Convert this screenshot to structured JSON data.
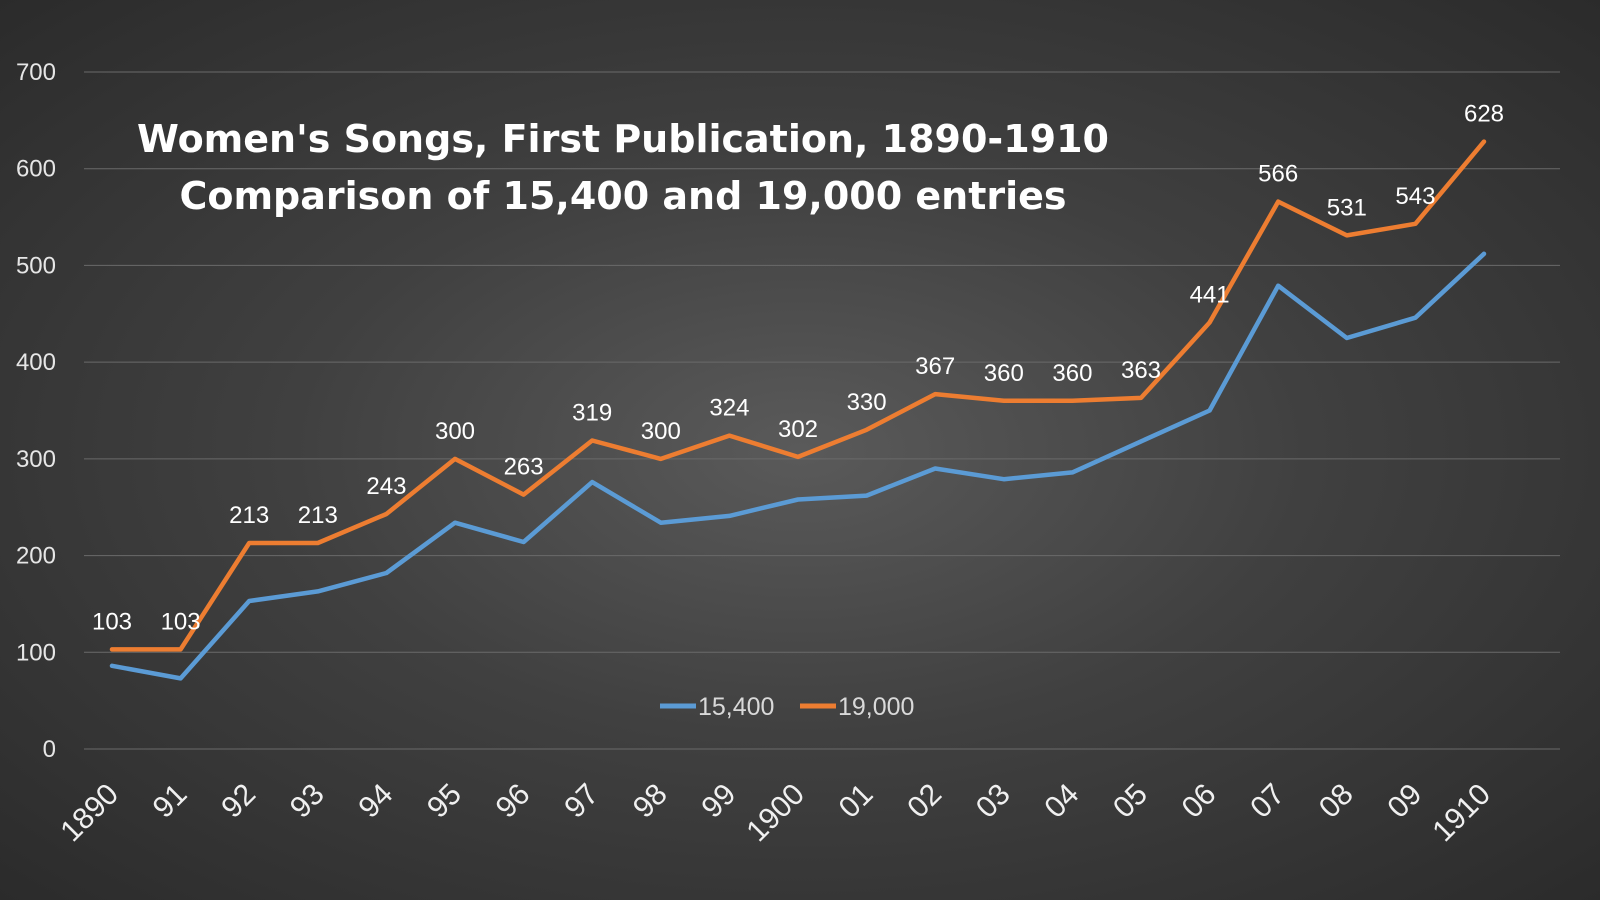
{
  "chart_data": {
    "type": "line",
    "title_lines": [
      "Women's Songs, First Publication, 1890-1910",
      "Comparison of 15,400 and 19,000 entries"
    ],
    "xlabel": "",
    "ylabel": "",
    "categories": [
      "1890",
      "91",
      "92",
      "93",
      "94",
      "95",
      "96",
      "97",
      "98",
      "99",
      "1900",
      "01",
      "02",
      "03",
      "04",
      "05",
      "06",
      "07",
      "08",
      "09",
      "1910"
    ],
    "ylim": [
      0,
      700
    ],
    "yticks": [
      "0",
      "100",
      "200",
      "300",
      "400",
      "500",
      "600",
      "700"
    ],
    "grid": true,
    "legend_position": "bottom-center",
    "series": [
      {
        "name": "15,400",
        "color": "#5b9bd5",
        "values": [
          86,
          73,
          153,
          163,
          182,
          234,
          214,
          276,
          234,
          241,
          258,
          262,
          290,
          279,
          286,
          318,
          350,
          479,
          425,
          446,
          512
        ],
        "labels": []
      },
      {
        "name": "19,000",
        "color": "#ed7d31",
        "values": [
          103,
          103,
          213,
          213,
          243,
          300,
          263,
          319,
          300,
          324,
          302,
          330,
          367,
          360,
          360,
          363,
          441,
          566,
          531,
          543,
          628
        ],
        "labels": [
          "103",
          "103",
          "213",
          "213",
          "243",
          "300",
          "263",
          "319",
          "300",
          "324",
          "302",
          "330",
          "367",
          "360",
          "360",
          "363",
          "441",
          "566",
          "531",
          "543",
          "628"
        ]
      }
    ]
  },
  "colors": {
    "background_center": "#5a5a5a",
    "background_edge": "#2b2b2b",
    "gridline": "#6a6a6a",
    "text": "#ffffff"
  }
}
